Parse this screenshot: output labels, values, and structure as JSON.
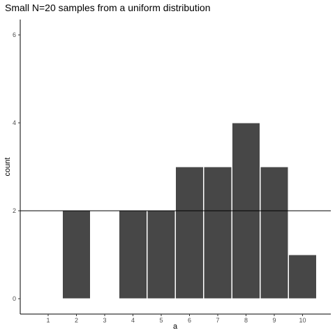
{
  "chart_data": {
    "type": "bar",
    "title": "Small N=20 samples from a uniform distribution",
    "xlabel": "a",
    "ylabel": "count",
    "categories": [
      "1",
      "2",
      "3",
      "4",
      "5",
      "6",
      "7",
      "8",
      "9",
      "10"
    ],
    "values": [
      0,
      2,
      0,
      2,
      2,
      3,
      3,
      4,
      3,
      1
    ],
    "ylim": [
      0,
      6
    ],
    "y_ticks": [
      0,
      2,
      4,
      6
    ],
    "reference_line": {
      "y": 2,
      "color": "#000000"
    },
    "bar_color": "#474747",
    "bar_edge_color": "#ffffff",
    "grid": false,
    "legend": "none"
  }
}
